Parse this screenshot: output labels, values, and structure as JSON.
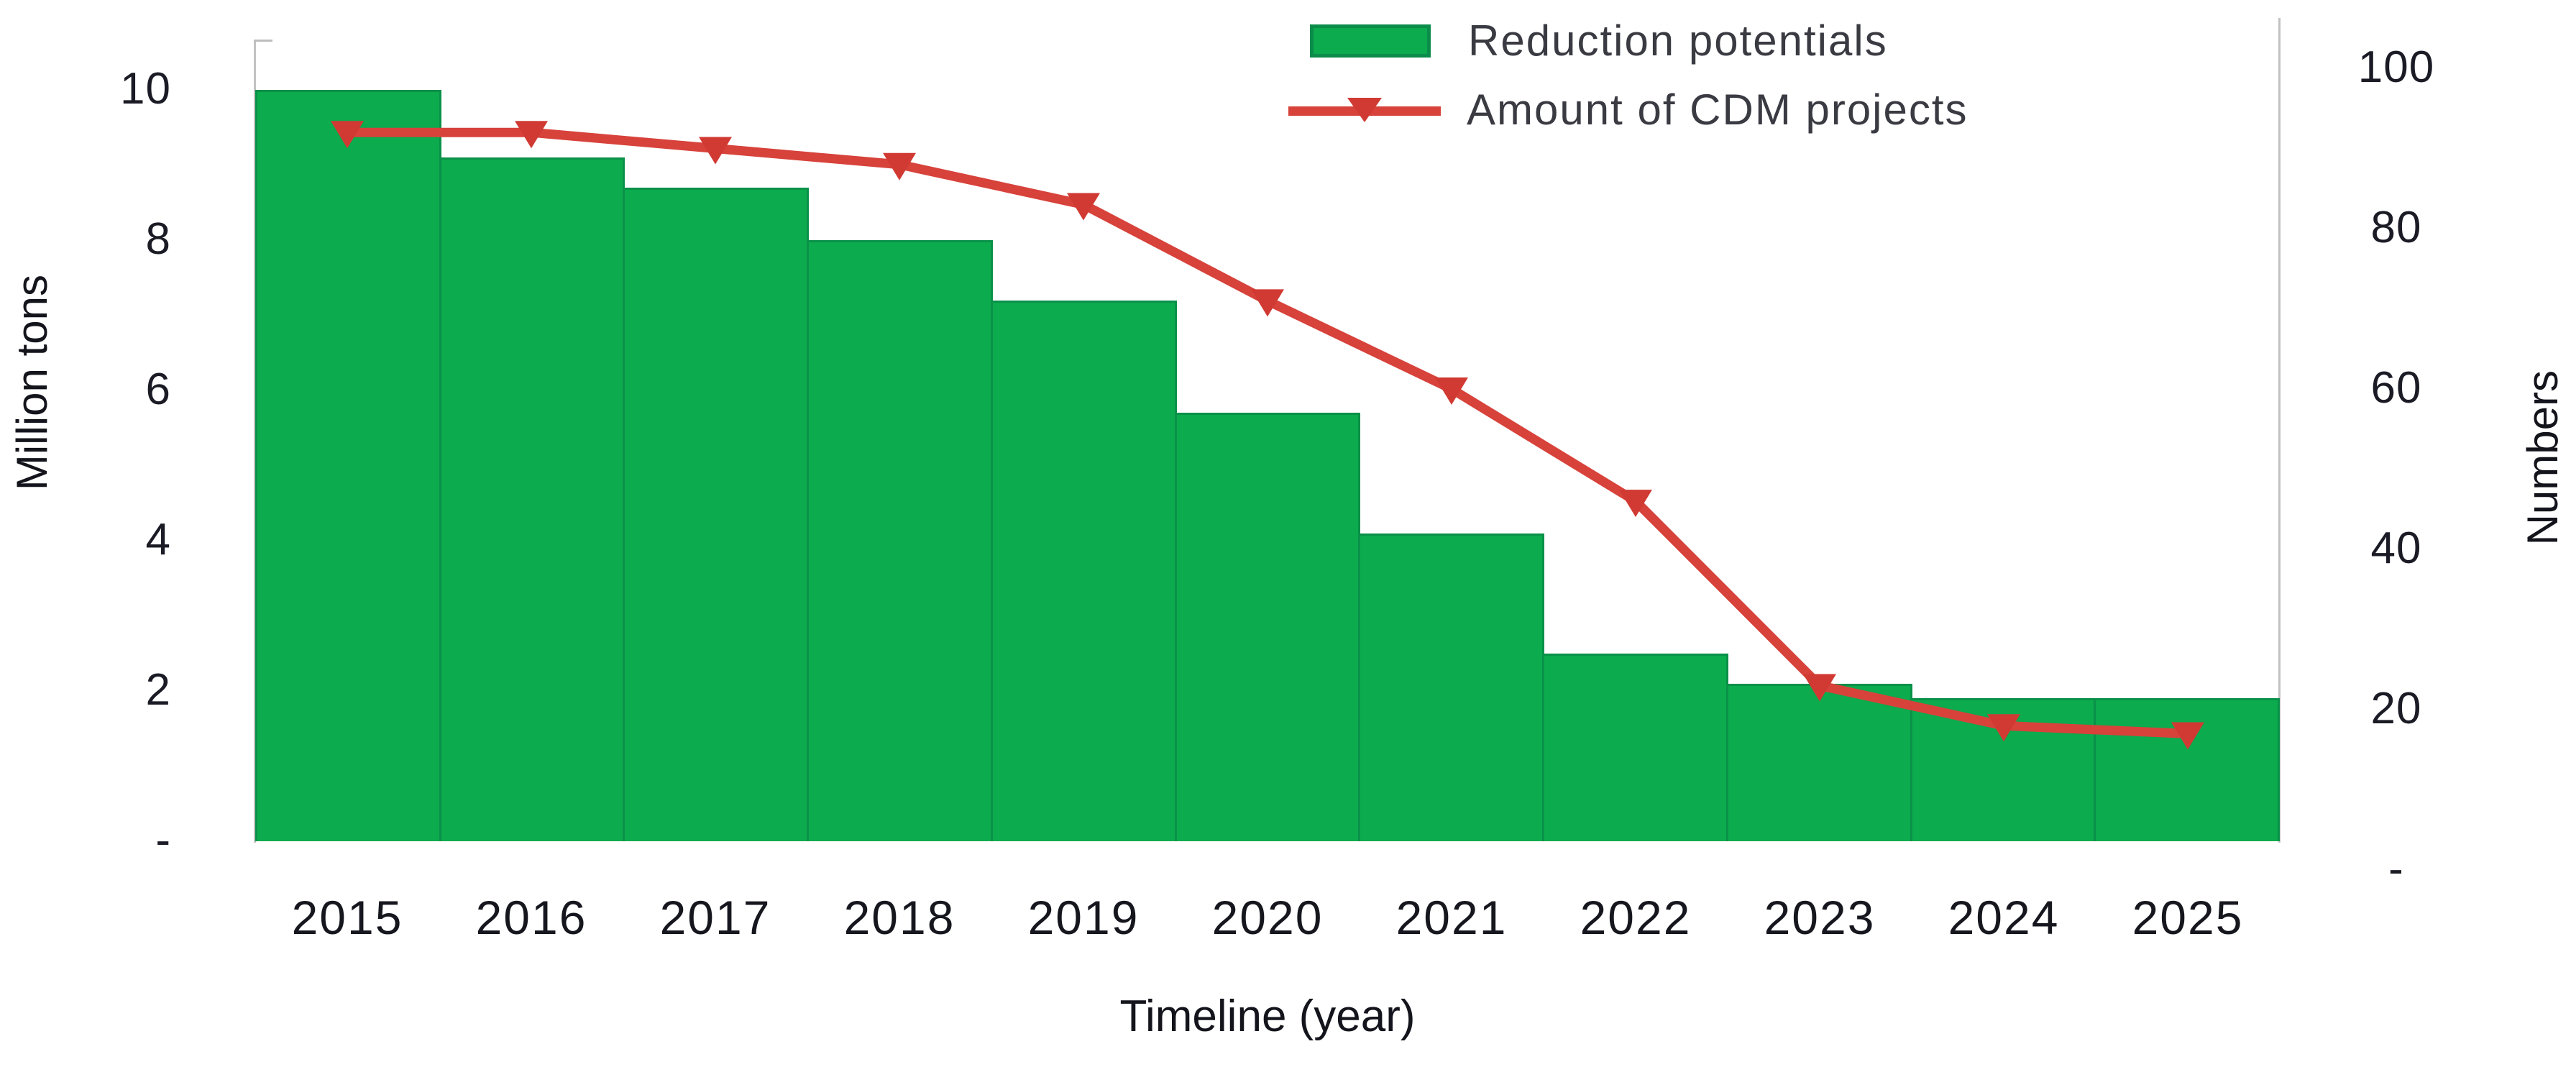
{
  "chart_data": {
    "type": "bar+line",
    "title": "",
    "categories": [
      "2015",
      "2016",
      "2017",
      "2018",
      "2019",
      "2020",
      "2021",
      "2022",
      "2023",
      "2024",
      "2025"
    ],
    "series": [
      {
        "name": "Reduction potentials",
        "type": "bar",
        "axis": "left",
        "color": "#0cab4e",
        "values": [
          10,
          9.1,
          8.7,
          8.0,
          7.2,
          5.7,
          4.1,
          2.5,
          2.1,
          1.9,
          1.9
        ]
      },
      {
        "name": "Amount of CDM projects",
        "type": "line",
        "axis": "right",
        "color": "#d7423b",
        "values": [
          92,
          92,
          90,
          88,
          83,
          71,
          60,
          46,
          23,
          18,
          17
        ]
      }
    ],
    "left_axis": {
      "label": "Million tons",
      "ticks": [
        "10",
        "8",
        "6",
        "4",
        "2",
        "-"
      ],
      "range": [
        0,
        10
      ]
    },
    "right_axis": {
      "label": "Numbers",
      "ticks": [
        "100",
        "80",
        "60",
        "40",
        "20",
        "-"
      ],
      "range": [
        0,
        100
      ]
    },
    "x_axis": {
      "label": "Timeline (year)"
    },
    "legend_position": "top-center",
    "grid": "off"
  }
}
